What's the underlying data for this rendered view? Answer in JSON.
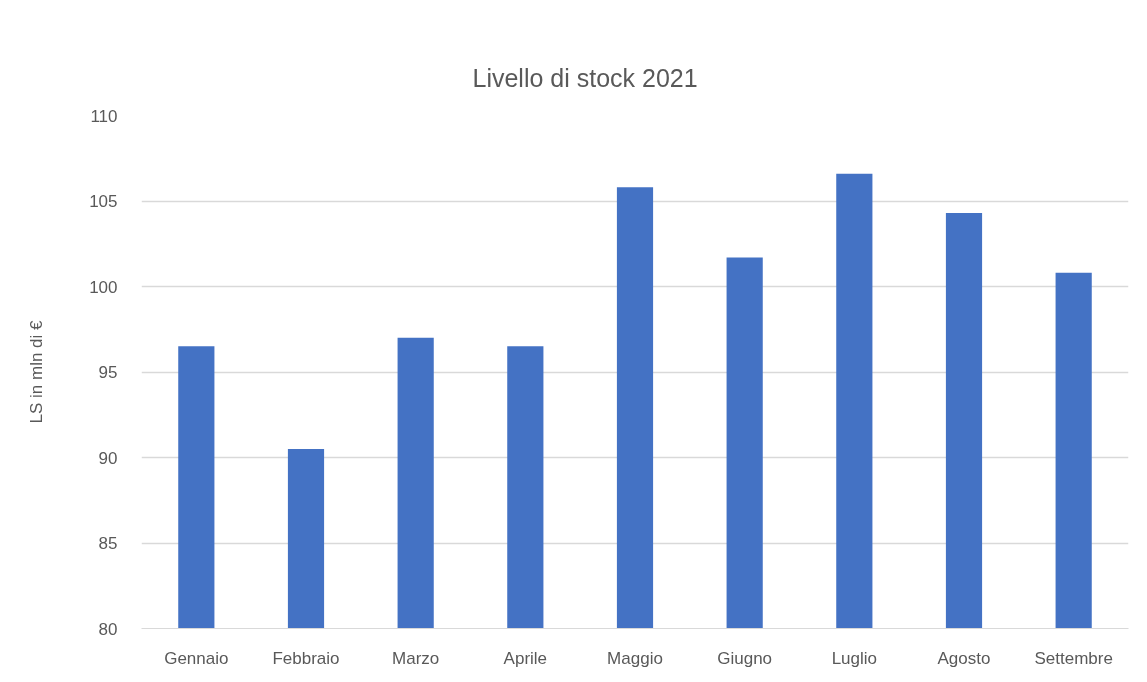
{
  "chart_data": {
    "type": "bar",
    "title": "Livello di stock 2021",
    "ylabel": "LS in mln di €",
    "categories": [
      "Gennaio",
      "Febbraio",
      "Marzo",
      "Aprile",
      "Maggio",
      "Giugno",
      "Luglio",
      "Agosto",
      "Settembre"
    ],
    "values": [
      96.5,
      90.5,
      97.0,
      96.5,
      105.8,
      101.7,
      106.6,
      104.3,
      100.8
    ],
    "color": "#4472c4",
    "ylim": [
      80,
      110
    ],
    "yticks": [
      80,
      85,
      90,
      95,
      100,
      105,
      110
    ],
    "grid": "y"
  }
}
